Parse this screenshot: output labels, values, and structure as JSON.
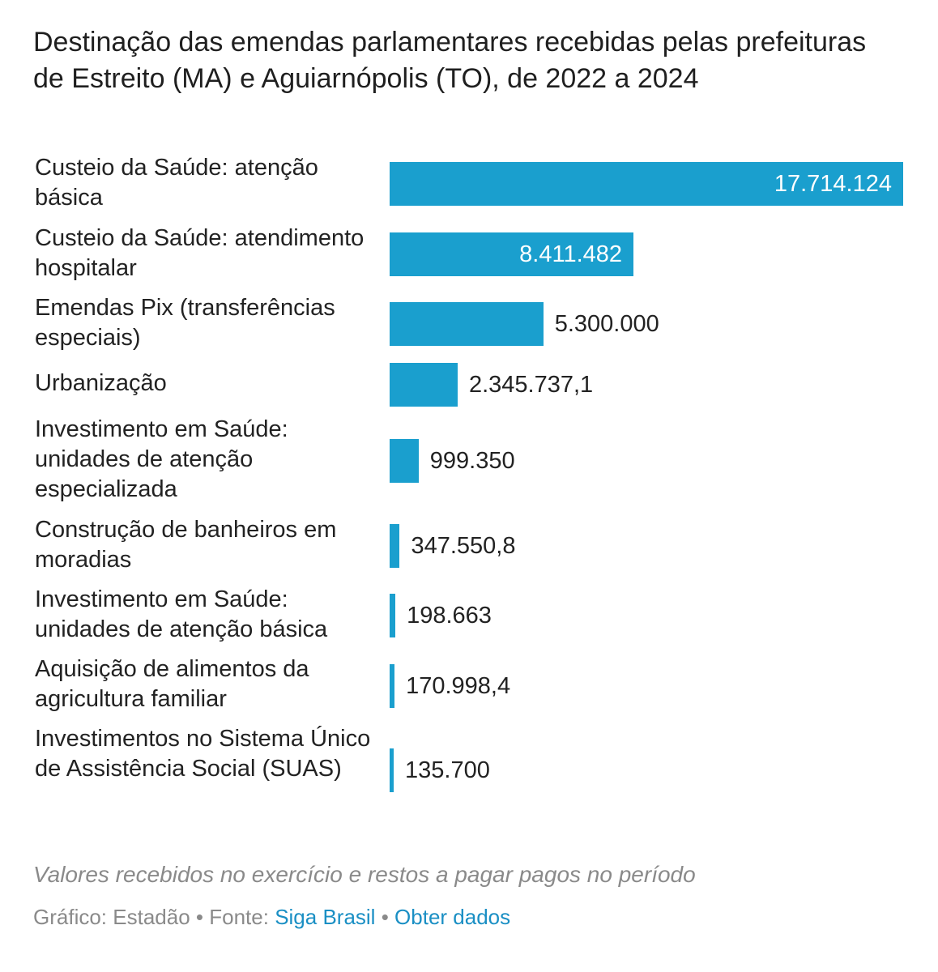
{
  "chart_data": {
    "type": "bar",
    "orientation": "horizontal",
    "title": "Destinação das emendas parlamentares recebidas pelas prefeituras de Estreito (MA) e Aguiarnópolis (TO), de 2022 a 2024",
    "categories": [
      "Custeio da Saúde: atenção básica",
      "Custeio da Saúde: atendimento hospitalar",
      "Emendas Pix (transferências especiais)",
      "Urbanização",
      "Investimento em Saúde: unidades de atenção especializada",
      "Construção de banheiros em moradias",
      "Investimento em Saúde: unidades de atenção básica",
      "Aquisição de alimentos da agricultura familiar",
      "Investimentos no Sistema Único de Assistência Social (SUAS)"
    ],
    "values": [
      17714124,
      8411482,
      5300000,
      2345737.1,
      999350,
      347550.8,
      198663,
      170998.4,
      135700
    ],
    "value_labels": [
      "17.714.124",
      "8.411.482",
      "5.300.000",
      "2.345.737,1",
      "999.350",
      "347.550,8",
      "198.663",
      "170.998,4",
      "135.700"
    ],
    "xlim": [
      0,
      17714124
    ],
    "bar_color": "#1a9fce",
    "grid": false,
    "legend": "none"
  },
  "note": "Valores recebidos no exercício e restos a pagar pagos no período",
  "footer": {
    "credit": "Gráfico: Estadão",
    "separator": "•",
    "source_prefix": "Fonte:",
    "source_link": "Siga Brasil",
    "data_link": "Obter dados"
  }
}
